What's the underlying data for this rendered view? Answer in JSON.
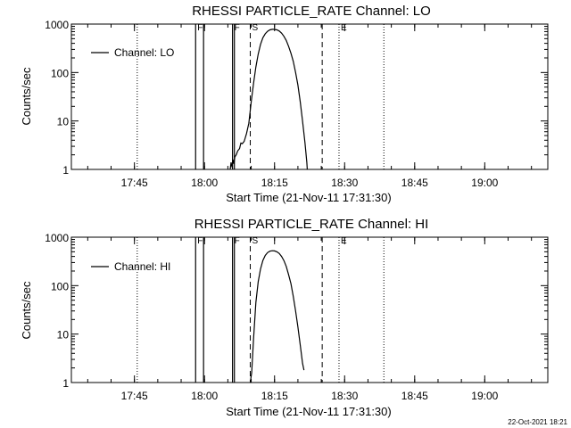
{
  "chart_data": [
    {
      "type": "line",
      "title": "RHESSI PARTICLE_RATE Channel: LO",
      "xlabel": "Start Time (21-Nov-11 17:31:30)",
      "ylabel": "Counts/sec",
      "y_scale": "log",
      "ylim": [
        1,
        1000
      ],
      "x_unit": "minutes after 17:31:30",
      "xlim": [
        0,
        102
      ],
      "x_ticks": [
        {
          "label": "17:45",
          "value": 13.5
        },
        {
          "label": "18:00",
          "value": 28.5
        },
        {
          "label": "18:15",
          "value": 43.5
        },
        {
          "label": "18:30",
          "value": 58.5
        },
        {
          "label": "18:45",
          "value": 73.5
        },
        {
          "label": "19:00",
          "value": 88.5
        }
      ],
      "y_ticks": [
        {
          "label": "1",
          "value": 1
        },
        {
          "label": "10",
          "value": 10
        },
        {
          "label": "100",
          "value": 100
        },
        {
          "label": "1000",
          "value": 1000
        }
      ],
      "legend": {
        "label": "Channel: LO",
        "position": "top-left"
      },
      "markers": [
        {
          "label": "F",
          "x": 26.6,
          "style": "solid"
        },
        {
          "label": "",
          "x": 28.3,
          "style": "solid"
        },
        {
          "label": "F",
          "x": 34.5,
          "style": "solid"
        },
        {
          "label": "",
          "x": 34.9,
          "style": "solid"
        },
        {
          "label": "S",
          "x": 38.3,
          "style": "dashed"
        },
        {
          "label": "",
          "x": 53.7,
          "style": "dashed"
        },
        {
          "label": "E",
          "x": 57.3,
          "style": "dotted"
        },
        {
          "label": "",
          "x": 14.1,
          "style": "dotted"
        },
        {
          "label": "",
          "x": 66.9,
          "style": "dotted"
        }
      ],
      "series": [
        {
          "name": "Channel: LO",
          "points": [
            [
              34.0,
              1.0
            ],
            [
              34.2,
              1.4
            ],
            [
              34.4,
              1.1
            ],
            [
              34.6,
              1.6
            ],
            [
              34.8,
              1.3
            ],
            [
              35.0,
              1.8
            ],
            [
              35.3,
              2.0
            ],
            [
              35.6,
              2.4
            ],
            [
              36.0,
              2.7
            ],
            [
              36.3,
              3.5
            ],
            [
              36.6,
              3.4
            ],
            [
              37.0,
              3.8
            ],
            [
              37.5,
              5.5
            ],
            [
              38.0,
              9
            ],
            [
              38.5,
              25
            ],
            [
              39.0,
              60
            ],
            [
              39.5,
              130
            ],
            [
              40.0,
              240
            ],
            [
              40.5,
              380
            ],
            [
              41.0,
              520
            ],
            [
              41.5,
              630
            ],
            [
              42.0,
              710
            ],
            [
              42.5,
              760
            ],
            [
              43.0,
              780
            ],
            [
              43.5,
              780
            ],
            [
              44.0,
              760
            ],
            [
              44.5,
              720
            ],
            [
              45.0,
              650
            ],
            [
              45.5,
              560
            ],
            [
              46.0,
              460
            ],
            [
              46.5,
              350
            ],
            [
              47.0,
              250
            ],
            [
              47.5,
              170
            ],
            [
              48.0,
              100
            ],
            [
              48.5,
              55
            ],
            [
              49.0,
              25
            ],
            [
              49.5,
              10
            ],
            [
              50.0,
              3.6
            ],
            [
              50.4,
              1.4
            ],
            [
              50.5,
              1.0
            ]
          ]
        }
      ]
    },
    {
      "type": "line",
      "title": "RHESSI PARTICLE_RATE Channel: HI",
      "xlabel": "Start Time (21-Nov-11 17:31:30)",
      "ylabel": "Counts/sec",
      "y_scale": "log",
      "ylim": [
        1,
        1000
      ],
      "x_unit": "minutes after 17:31:30",
      "xlim": [
        0,
        102
      ],
      "x_ticks": [
        {
          "label": "17:45",
          "value": 13.5
        },
        {
          "label": "18:00",
          "value": 28.5
        },
        {
          "label": "18:15",
          "value": 43.5
        },
        {
          "label": "18:30",
          "value": 58.5
        },
        {
          "label": "18:45",
          "value": 73.5
        },
        {
          "label": "19:00",
          "value": 88.5
        }
      ],
      "y_ticks": [
        {
          "label": "1",
          "value": 1
        },
        {
          "label": "10",
          "value": 10
        },
        {
          "label": "100",
          "value": 100
        },
        {
          "label": "1000",
          "value": 1000
        }
      ],
      "legend": {
        "label": "Channel: HI",
        "position": "top-left"
      },
      "markers": [
        {
          "label": "F",
          "x": 26.6,
          "style": "solid"
        },
        {
          "label": "",
          "x": 28.3,
          "style": "solid"
        },
        {
          "label": "F",
          "x": 34.5,
          "style": "solid"
        },
        {
          "label": "",
          "x": 34.9,
          "style": "solid"
        },
        {
          "label": "S",
          "x": 38.3,
          "style": "dashed"
        },
        {
          "label": "",
          "x": 53.7,
          "style": "dashed"
        },
        {
          "label": "E",
          "x": 57.3,
          "style": "dotted"
        },
        {
          "label": "",
          "x": 14.1,
          "style": "dotted"
        },
        {
          "label": "",
          "x": 66.9,
          "style": "dotted"
        }
      ],
      "series": [
        {
          "name": "Channel: HI",
          "points": [
            [
              38.3,
              1.0
            ],
            [
              38.6,
              1.6
            ],
            [
              39.0,
              8
            ],
            [
              39.5,
              45
            ],
            [
              40.0,
              120
            ],
            [
              40.5,
              220
            ],
            [
              41.0,
              330
            ],
            [
              41.5,
              420
            ],
            [
              42.0,
              480
            ],
            [
              42.5,
              515
            ],
            [
              43.0,
              525
            ],
            [
              43.5,
              520
            ],
            [
              44.0,
              500
            ],
            [
              44.5,
              460
            ],
            [
              45.0,
              400
            ],
            [
              45.5,
              330
            ],
            [
              46.0,
              250
            ],
            [
              46.5,
              170
            ],
            [
              47.0,
              110
            ],
            [
              47.5,
              60
            ],
            [
              48.0,
              30
            ],
            [
              48.5,
              14
            ],
            [
              49.0,
              6
            ],
            [
              49.5,
              2.5
            ],
            [
              49.8,
              1.8
            ]
          ]
        }
      ]
    }
  ],
  "footer": {
    "timestamp": "22-Oct-2021 18:21"
  }
}
